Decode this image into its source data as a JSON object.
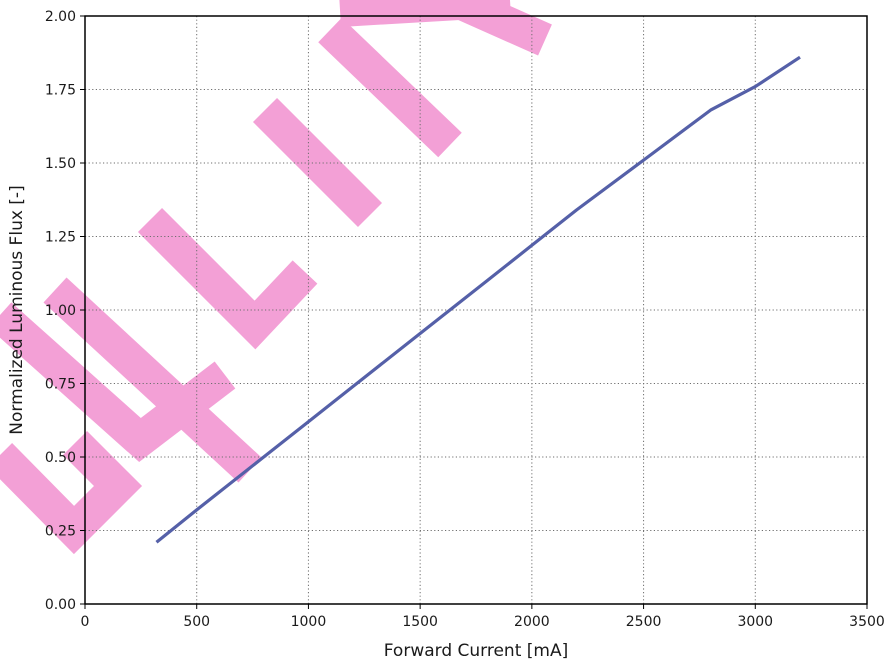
{
  "chart_data": {
    "type": "line",
    "xlabel": "Forward Current [mA]",
    "ylabel": "Normalized Luminous Flux [-]",
    "xlim": [
      0,
      3500
    ],
    "ylim": [
      0,
      2.0
    ],
    "x_ticks": [
      "0",
      "500",
      "1000",
      "1500",
      "2000",
      "2500",
      "3000",
      "3500"
    ],
    "y_ticks": [
      "0.00",
      "0.25",
      "0.50",
      "0.75",
      "1.00",
      "1.25",
      "1.50",
      "1.75",
      "2.00"
    ],
    "grid": true,
    "series": [
      {
        "color": "#5560a8",
        "x": [
          320,
          500,
          800,
          1000,
          1200,
          1500,
          1800,
          2000,
          2200,
          2500,
          2800,
          3000,
          3200
        ],
        "y": [
          0.21,
          0.32,
          0.5,
          0.62,
          0.74,
          0.92,
          1.1,
          1.22,
          1.34,
          1.51,
          1.68,
          1.76,
          1.86
        ]
      }
    ]
  },
  "watermark": {
    "color": "#f3a0d6"
  }
}
